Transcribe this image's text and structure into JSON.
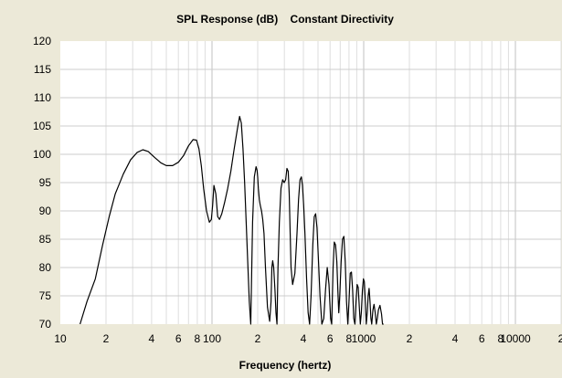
{
  "chart_data": {
    "type": "line",
    "title": "SPL Response (dB)    Constant Directivity",
    "xlabel": "Frequency (hertz)",
    "ylabel": "",
    "xscale": "log",
    "xlim": [
      10,
      20000
    ],
    "ylim": [
      70,
      120
    ],
    "grid": true,
    "background": "#ffffff",
    "frame_color": "#ece9d8",
    "line_color": "#000000",
    "yticks": [
      "70",
      "75",
      "80",
      "85",
      "90",
      "95",
      "100",
      "105",
      "110",
      "115",
      "120"
    ],
    "xtick_labels": [
      {
        "x": 10,
        "label": "10"
      },
      {
        "x": 20,
        "label": "2"
      },
      {
        "x": 40,
        "label": "4"
      },
      {
        "x": 60,
        "label": "6"
      },
      {
        "x": 80,
        "label": "8"
      },
      {
        "x": 100,
        "label": "100"
      },
      {
        "x": 200,
        "label": "2"
      },
      {
        "x": 400,
        "label": "4"
      },
      {
        "x": 600,
        "label": "6"
      },
      {
        "x": 800,
        "label": "8"
      },
      {
        "x": 1000,
        "label": "1000"
      },
      {
        "x": 2000,
        "label": "2"
      },
      {
        "x": 4000,
        "label": "4"
      },
      {
        "x": 6000,
        "label": "6"
      },
      {
        "x": 8000,
        "label": "8"
      },
      {
        "x": 10000,
        "label": "10000"
      },
      {
        "x": 20000,
        "label": "2"
      }
    ],
    "series": [
      {
        "x": [
          13.5,
          15,
          17,
          19,
          21,
          23,
          26,
          29,
          32,
          35,
          38,
          42,
          46,
          50,
          55,
          60,
          65,
          70,
          75,
          79,
          82,
          85,
          88,
          92,
          96,
          99,
          101,
          103,
          106,
          109,
          112,
          116,
          121,
          127,
          133,
          140,
          147,
          152,
          156,
          160,
          164,
          168,
          172,
          176,
          180,
          185,
          190,
          195,
          198,
          200,
          202,
          205,
          208,
          212,
          216,
          220,
          225,
          232,
          240,
          245,
          248,
          251,
          255,
          260,
          264,
          268,
          272,
          278,
          285,
          292,
          299,
          306,
          312,
          318,
          323,
          327,
          332,
          340,
          352,
          363,
          372,
          380,
          388,
          395,
          402,
          410,
          420,
          430,
          440,
          450,
          462,
          472,
          482,
          492,
          502,
          515,
          530,
          545,
          560,
          575,
          590,
          605,
          615,
          628,
          640,
          652,
          665,
          675,
          685,
          695,
          710,
          725,
          740,
          755,
          770,
          785,
          800,
          815,
          830,
          845,
          860,
          875,
          890,
          905,
          920,
          935,
          950,
          965,
          980,
          995,
          1010,
          1025,
          1040,
          1055,
          1070,
          1085,
          1100,
          1115,
          1130,
          1150,
          1170,
          1190,
          1210,
          1230,
          1250,
          1280,
          1310,
          1330,
          1350
        ],
        "y": [
          70,
          74,
          78,
          84,
          89,
          93,
          96.5,
          99,
          100.3,
          100.8,
          100.5,
          99.4,
          98.5,
          98.0,
          98.0,
          98.6,
          99.8,
          101.5,
          102.6,
          102.5,
          101.0,
          98.0,
          94.0,
          90.0,
          88.0,
          88.5,
          91.0,
          94.5,
          93.0,
          89.0,
          88.5,
          89.5,
          91.5,
          94.0,
          97.0,
          101.0,
          104.5,
          106.7,
          105.5,
          101.0,
          95.0,
          88.0,
          81.0,
          74.0,
          70.0,
          88.0,
          96.0,
          97.8,
          97.2,
          96.0,
          94.0,
          92.0,
          91.0,
          90.0,
          88.5,
          86.0,
          80.0,
          73.0,
          70.5,
          74.0,
          80.0,
          81.2,
          80.0,
          76.0,
          72.0,
          70.0,
          80.0,
          88.0,
          94.0,
          95.5,
          95.0,
          95.5,
          97.5,
          97.0,
          93.0,
          87.0,
          80.0,
          77.0,
          79.0,
          86.0,
          92.0,
          95.5,
          96.0,
          94.5,
          91.0,
          86.0,
          78.0,
          72.0,
          70.0,
          75.0,
          84.0,
          89.0,
          89.5,
          87.0,
          82.0,
          75.0,
          70.0,
          71.0,
          76.0,
          80.0,
          77.0,
          71.0,
          70.0,
          80.0,
          84.5,
          84.0,
          81.0,
          76.0,
          72.0,
          75.0,
          81.0,
          85.0,
          85.5,
          81.0,
          74.0,
          70.0,
          74.0,
          79.0,
          79.2,
          76.0,
          71.0,
          70.0,
          74.0,
          77.0,
          76.5,
          73.0,
          70.0,
          72.0,
          76.0,
          78.0,
          77.5,
          74.0,
          70.0,
          72.0,
          75.0,
          76.3,
          74.0,
          71.0,
          70.0,
          72.5,
          73.5,
          72.0,
          70.0,
          71.0,
          72.5,
          73.3,
          71.8,
          70.0,
          70.0
        ]
      }
    ]
  }
}
